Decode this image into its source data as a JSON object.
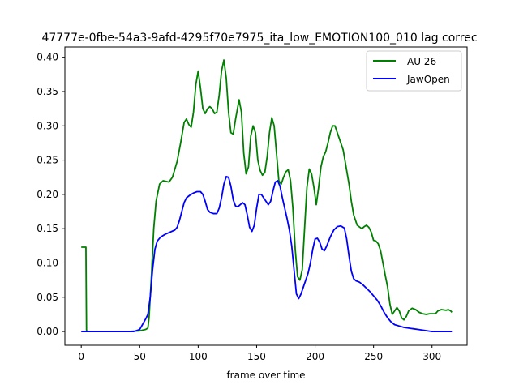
{
  "chart_data": {
    "type": "line",
    "title": "47777e-0fbe-54a3-9afd-4295f70e7975_ita_low_EMOTION100_010  lag correc",
    "xlabel": "frame over time",
    "ylabel": "",
    "xlim": [
      -14,
      330
    ],
    "ylim": [
      -0.02,
      0.415
    ],
    "xticks": [
      0,
      50,
      100,
      150,
      200,
      250,
      300
    ],
    "yticks": [
      0.0,
      0.05,
      0.1,
      0.15,
      0.2,
      0.25,
      0.3,
      0.35,
      0.4
    ],
    "ytick_labels": [
      "0.00",
      "0.05",
      "0.10",
      "0.15",
      "0.20",
      "0.25",
      "0.30",
      "0.35",
      "0.40"
    ],
    "legend_position": "top-right",
    "grid": false,
    "series": [
      {
        "name": "AU 26",
        "color": "#008000",
        "points": [
          [
            0,
            0.123
          ],
          [
            4,
            0.123
          ],
          [
            4.5,
            0.002
          ],
          [
            5,
            0.0
          ],
          [
            40,
            0.0
          ],
          [
            50,
            0.001
          ],
          [
            55,
            0.003
          ],
          [
            57,
            0.005
          ],
          [
            58,
            0.02
          ],
          [
            60,
            0.08
          ],
          [
            62,
            0.15
          ],
          [
            64,
            0.19
          ],
          [
            67,
            0.215
          ],
          [
            70,
            0.22
          ],
          [
            75,
            0.218
          ],
          [
            78,
            0.225
          ],
          [
            82,
            0.248
          ],
          [
            85,
            0.275
          ],
          [
            88,
            0.305
          ],
          [
            90,
            0.31
          ],
          [
            92,
            0.302
          ],
          [
            94,
            0.298
          ],
          [
            96,
            0.32
          ],
          [
            98,
            0.36
          ],
          [
            100,
            0.38
          ],
          [
            102,
            0.355
          ],
          [
            104,
            0.325
          ],
          [
            106,
            0.318
          ],
          [
            108,
            0.325
          ],
          [
            110,
            0.328
          ],
          [
            112,
            0.325
          ],
          [
            114,
            0.318
          ],
          [
            116,
            0.32
          ],
          [
            118,
            0.345
          ],
          [
            120,
            0.38
          ],
          [
            122,
            0.396
          ],
          [
            124,
            0.37
          ],
          [
            126,
            0.32
          ],
          [
            128,
            0.29
          ],
          [
            130,
            0.288
          ],
          [
            132,
            0.31
          ],
          [
            135,
            0.338
          ],
          [
            137,
            0.32
          ],
          [
            139,
            0.26
          ],
          [
            141,
            0.23
          ],
          [
            143,
            0.24
          ],
          [
            145,
            0.285
          ],
          [
            147,
            0.3
          ],
          [
            149,
            0.29
          ],
          [
            151,
            0.25
          ],
          [
            153,
            0.235
          ],
          [
            155,
            0.228
          ],
          [
            157,
            0.232
          ],
          [
            159,
            0.255
          ],
          [
            161,
            0.29
          ],
          [
            163,
            0.312
          ],
          [
            165,
            0.3
          ],
          [
            167,
            0.26
          ],
          [
            169,
            0.22
          ],
          [
            171,
            0.215
          ],
          [
            173,
            0.225
          ],
          [
            175,
            0.233
          ],
          [
            177,
            0.236
          ],
          [
            179,
            0.22
          ],
          [
            181,
            0.18
          ],
          [
            183,
            0.12
          ],
          [
            185,
            0.08
          ],
          [
            187,
            0.075
          ],
          [
            189,
            0.09
          ],
          [
            191,
            0.15
          ],
          [
            193,
            0.21
          ],
          [
            195,
            0.237
          ],
          [
            197,
            0.23
          ],
          [
            199,
            0.21
          ],
          [
            201,
            0.185
          ],
          [
            203,
            0.21
          ],
          [
            205,
            0.24
          ],
          [
            207,
            0.255
          ],
          [
            209,
            0.262
          ],
          [
            211,
            0.275
          ],
          [
            213,
            0.29
          ],
          [
            215,
            0.3
          ],
          [
            217,
            0.3
          ],
          [
            219,
            0.29
          ],
          [
            221,
            0.28
          ],
          [
            224,
            0.265
          ],
          [
            226,
            0.245
          ],
          [
            229,
            0.215
          ],
          [
            231,
            0.19
          ],
          [
            233,
            0.17
          ],
          [
            236,
            0.155
          ],
          [
            240,
            0.15
          ],
          [
            242,
            0.153
          ],
          [
            244,
            0.155
          ],
          [
            246,
            0.152
          ],
          [
            248,
            0.145
          ],
          [
            250,
            0.133
          ],
          [
            252,
            0.132
          ],
          [
            254,
            0.128
          ],
          [
            256,
            0.118
          ],
          [
            258,
            0.1
          ],
          [
            260,
            0.082
          ],
          [
            262,
            0.065
          ],
          [
            264,
            0.04
          ],
          [
            266,
            0.025
          ],
          [
            268,
            0.03
          ],
          [
            270,
            0.035
          ],
          [
            272,
            0.03
          ],
          [
            274,
            0.02
          ],
          [
            276,
            0.017
          ],
          [
            278,
            0.022
          ],
          [
            280,
            0.03
          ],
          [
            283,
            0.034
          ],
          [
            286,
            0.032
          ],
          [
            289,
            0.028
          ],
          [
            292,
            0.026
          ],
          [
            295,
            0.025
          ],
          [
            298,
            0.026
          ],
          [
            301,
            0.026
          ],
          [
            303,
            0.026
          ],
          [
            305,
            0.03
          ],
          [
            308,
            0.032
          ],
          [
            312,
            0.031
          ],
          [
            314,
            0.032
          ],
          [
            316,
            0.03
          ],
          [
            317,
            0.028
          ]
        ]
      },
      {
        "name": "JawOpen",
        "color": "#0000ff",
        "points": [
          [
            0,
            0.0
          ],
          [
            20,
            0.0
          ],
          [
            45,
            0.0
          ],
          [
            50,
            0.003
          ],
          [
            53,
            0.012
          ],
          [
            55,
            0.018
          ],
          [
            57,
            0.025
          ],
          [
            59,
            0.05
          ],
          [
            61,
            0.09
          ],
          [
            63,
            0.12
          ],
          [
            65,
            0.132
          ],
          [
            68,
            0.138
          ],
          [
            72,
            0.142
          ],
          [
            76,
            0.145
          ],
          [
            80,
            0.148
          ],
          [
            82,
            0.152
          ],
          [
            84,
            0.162
          ],
          [
            86,
            0.175
          ],
          [
            88,
            0.188
          ],
          [
            90,
            0.195
          ],
          [
            93,
            0.199
          ],
          [
            96,
            0.202
          ],
          [
            99,
            0.204
          ],
          [
            102,
            0.204
          ],
          [
            104,
            0.2
          ],
          [
            106,
            0.19
          ],
          [
            108,
            0.178
          ],
          [
            110,
            0.174
          ],
          [
            113,
            0.172
          ],
          [
            116,
            0.172
          ],
          [
            118,
            0.18
          ],
          [
            120,
            0.195
          ],
          [
            122,
            0.215
          ],
          [
            124,
            0.226
          ],
          [
            126,
            0.225
          ],
          [
            128,
            0.212
          ],
          [
            130,
            0.192
          ],
          [
            132,
            0.183
          ],
          [
            134,
            0.182
          ],
          [
            136,
            0.185
          ],
          [
            138,
            0.188
          ],
          [
            140,
            0.185
          ],
          [
            142,
            0.17
          ],
          [
            144,
            0.152
          ],
          [
            146,
            0.146
          ],
          [
            148,
            0.155
          ],
          [
            150,
            0.18
          ],
          [
            152,
            0.2
          ],
          [
            154,
            0.2
          ],
          [
            156,
            0.195
          ],
          [
            158,
            0.19
          ],
          [
            160,
            0.185
          ],
          [
            162,
            0.19
          ],
          [
            164,
            0.205
          ],
          [
            166,
            0.218
          ],
          [
            168,
            0.22
          ],
          [
            170,
            0.212
          ],
          [
            172,
            0.195
          ],
          [
            174,
            0.18
          ],
          [
            176,
            0.165
          ],
          [
            178,
            0.148
          ],
          [
            180,
            0.125
          ],
          [
            182,
            0.09
          ],
          [
            184,
            0.055
          ],
          [
            186,
            0.048
          ],
          [
            188,
            0.055
          ],
          [
            190,
            0.065
          ],
          [
            192,
            0.075
          ],
          [
            194,
            0.085
          ],
          [
            196,
            0.1
          ],
          [
            198,
            0.12
          ],
          [
            200,
            0.135
          ],
          [
            202,
            0.136
          ],
          [
            204,
            0.13
          ],
          [
            206,
            0.12
          ],
          [
            208,
            0.118
          ],
          [
            210,
            0.125
          ],
          [
            213,
            0.138
          ],
          [
            216,
            0.148
          ],
          [
            219,
            0.153
          ],
          [
            222,
            0.154
          ],
          [
            225,
            0.151
          ],
          [
            227,
            0.135
          ],
          [
            229,
            0.11
          ],
          [
            231,
            0.088
          ],
          [
            233,
            0.077
          ],
          [
            235,
            0.074
          ],
          [
            238,
            0.072
          ],
          [
            241,
            0.068
          ],
          [
            244,
            0.063
          ],
          [
            247,
            0.058
          ],
          [
            250,
            0.052
          ],
          [
            253,
            0.046
          ],
          [
            256,
            0.038
          ],
          [
            259,
            0.028
          ],
          [
            262,
            0.02
          ],
          [
            265,
            0.014
          ],
          [
            268,
            0.01
          ],
          [
            272,
            0.008
          ],
          [
            276,
            0.006
          ],
          [
            280,
            0.005
          ],
          [
            284,
            0.004
          ],
          [
            288,
            0.003
          ],
          [
            292,
            0.002
          ],
          [
            296,
            0.001
          ],
          [
            300,
            0.0
          ],
          [
            310,
            0.0
          ],
          [
            317,
            0.0
          ]
        ]
      }
    ]
  }
}
